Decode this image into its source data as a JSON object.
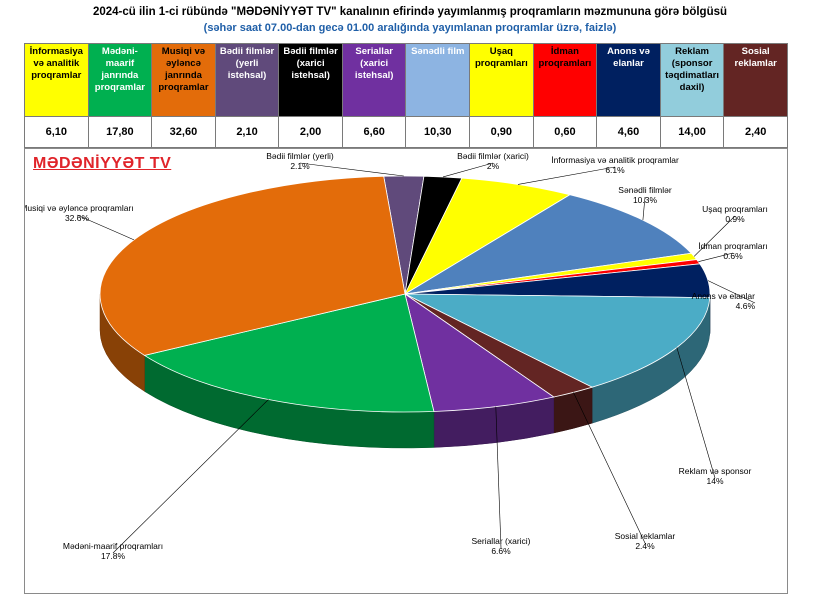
{
  "header": {
    "title": "2024-cü ilin 1-ci rübündə \"MƏDƏNİYYƏT TV\" kanalının efirində yayımlanmış proqramların məzmununa görə bölgüsü",
    "subtitle": "(səhər saat 07.00-dan gecə 01.00 aralığında yayımlanan proqramlar üzrə, faizlə)"
  },
  "table": {
    "columns": [
      {
        "label": "İnformasiya və analitik proqramlar",
        "value": "6,10",
        "bg": "#ffff00",
        "fg": "#000000"
      },
      {
        "label": "Mədəni-maarif janrında proqramlar",
        "value": "17,80",
        "bg": "#00b050",
        "fg": "#ffffff"
      },
      {
        "label": "Musiqi və əyləncə janrında proqramlar",
        "value": "32,60",
        "bg": "#e36c0a",
        "fg": "#000000"
      },
      {
        "label": "Bədii filmlər (yerli istehsal)",
        "value": "2,10",
        "bg": "#604a7b",
        "fg": "#ffffff"
      },
      {
        "label": "Bədii filmlər (xarici istehsal)",
        "value": "2,00",
        "bg": "#000000",
        "fg": "#ffffff"
      },
      {
        "label": "Seriallar (xarici istehsal)",
        "value": "6,60",
        "bg": "#7030a0",
        "fg": "#ffffff"
      },
      {
        "label": "Sənədli film",
        "value": "10,30",
        "bg": "#8db4e2",
        "fg": "#ffffff"
      },
      {
        "label": "Uşaq proqramları",
        "value": "0,90",
        "bg": "#ffff00",
        "fg": "#000000"
      },
      {
        "label": "İdman proqramları",
        "value": "0,60",
        "bg": "#ff0000",
        "fg": "#000000"
      },
      {
        "label": "Anons və elanlar",
        "value": "4,60",
        "bg": "#002060",
        "fg": "#ffffff"
      },
      {
        "label": "Reklam (sponsor təqdimatları daxil)",
        "value": "14,00",
        "bg": "#92cddc",
        "fg": "#000000"
      },
      {
        "label": "Sosial reklamlar",
        "value": "2,40",
        "bg": "#632523",
        "fg": "#ffffff"
      }
    ]
  },
  "chart_data": {
    "type": "pie",
    "title": "MƏDƏNİYYƏT TV",
    "three_d": true,
    "slices": [
      {
        "name": "Bədii filmlər (yerli)",
        "value": 2.1,
        "label": "2.1%",
        "color": "#604a7b"
      },
      {
        "name": "Bədii filmlər (xarici)",
        "value": 2.0,
        "label": "2%",
        "color": "#000000"
      },
      {
        "name": "İnformasiya və analitik proqramlar",
        "value": 6.1,
        "label": "6.1%",
        "color": "#ffff00"
      },
      {
        "name": "Sənədli filmlər",
        "value": 10.3,
        "label": "10.3%",
        "color": "#4f81bd"
      },
      {
        "name": "Uşaq proqramları",
        "value": 0.9,
        "label": "0.9%",
        "color": "#ffff00"
      },
      {
        "name": "İdman proqramları",
        "value": 0.6,
        "label": "0.6%",
        "color": "#ff0000"
      },
      {
        "name": "Anons və elanlar",
        "value": 4.6,
        "label": "4.6%",
        "color": "#002060"
      },
      {
        "name": "Reklam və sponsor",
        "value": 14.0,
        "label": "14%",
        "color": "#4bacc6"
      },
      {
        "name": "Sosial reklamlar",
        "value": 2.4,
        "label": "2.4%",
        "color": "#632523"
      },
      {
        "name": "Seriallar (xarici)",
        "value": 6.6,
        "label": "6.6%",
        "color": "#7030a0"
      },
      {
        "name": "Mədəni-maarif proqramları",
        "value": 17.8,
        "label": "17.8%",
        "color": "#00b050"
      },
      {
        "name": "Musiqi və əyləncə proqramları",
        "value": 32.6,
        "label": "32.6%",
        "color": "#e36c0a"
      }
    ]
  }
}
